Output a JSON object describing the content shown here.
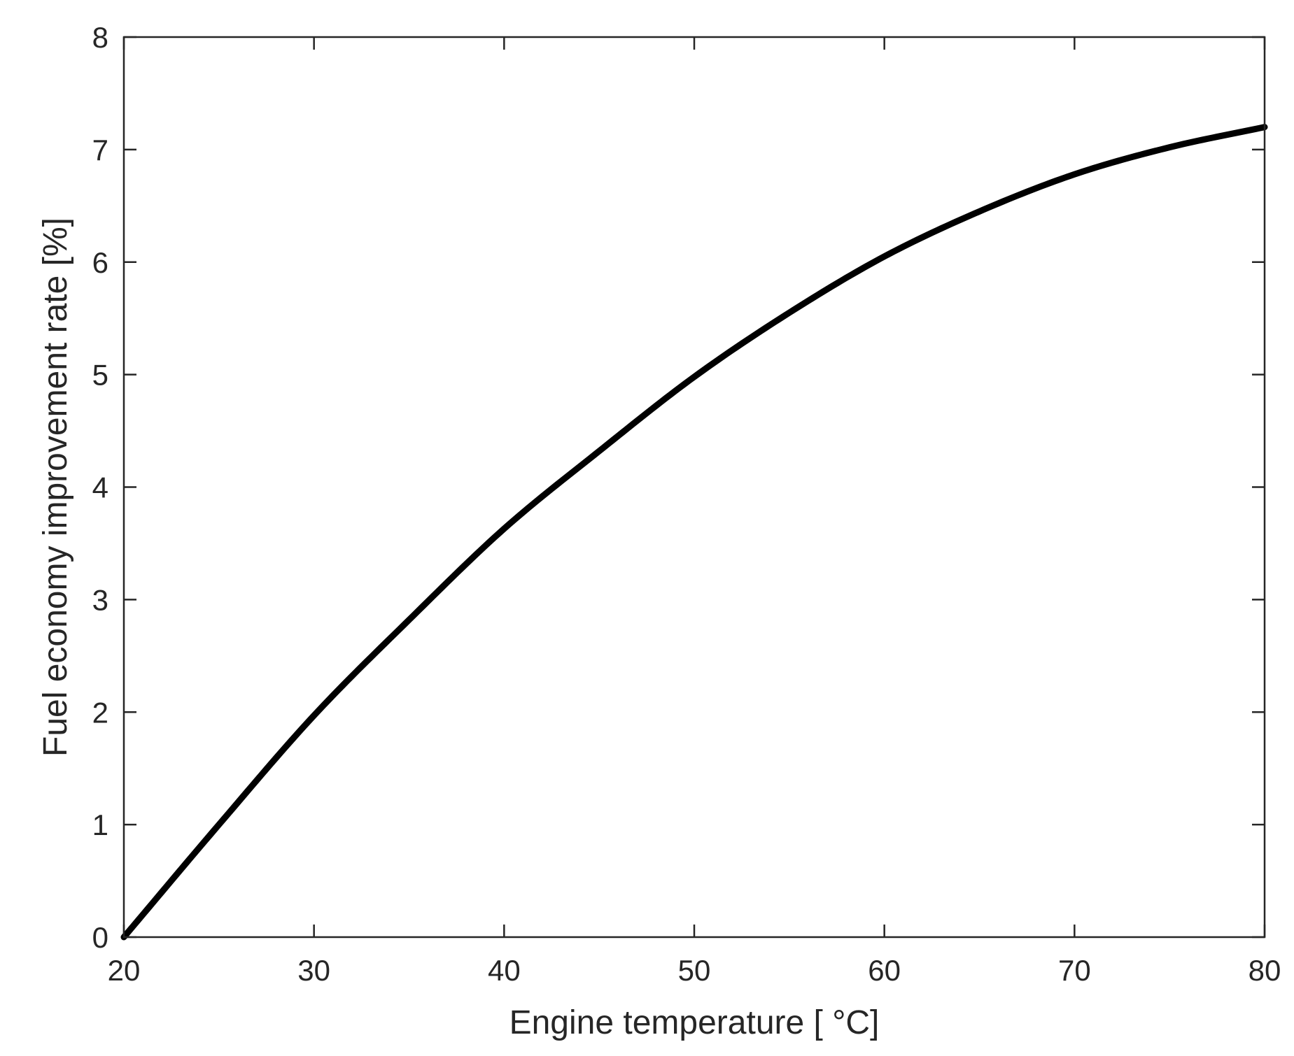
{
  "chart_data": {
    "type": "line",
    "xlabel": "Engine temperature [ °C]",
    "ylabel": "Fuel economy improvement rate [%]",
    "xlim": [
      20,
      80
    ],
    "ylim": [
      0,
      8
    ],
    "x_ticks": [
      20,
      30,
      40,
      50,
      60,
      70,
      80
    ],
    "y_ticks": [
      0,
      1,
      2,
      3,
      4,
      5,
      6,
      7,
      8
    ],
    "grid": false,
    "legend": "none",
    "line_color": "#000000",
    "series": [
      {
        "x": [
          20,
          25,
          30,
          35,
          40,
          45,
          50,
          55,
          60,
          65,
          70,
          75,
          80
        ],
        "values": [
          0.0,
          1.0,
          1.97,
          2.82,
          3.63,
          4.32,
          4.98,
          5.55,
          6.05,
          6.45,
          6.78,
          7.02,
          7.2
        ]
      }
    ]
  }
}
